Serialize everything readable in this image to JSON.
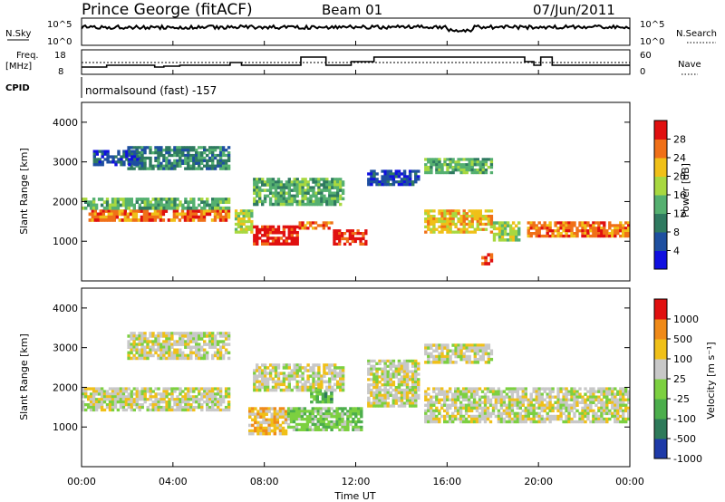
{
  "header": {
    "station": "Prince George (fitACF)",
    "beam": "Beam 01",
    "date": "07/Jun/2011"
  },
  "aux": {
    "nsky_label": "N.Sky",
    "nsky_ticks": [
      "10^5",
      "10^0"
    ],
    "nsearch_label": "N.Search",
    "nsearch_ticks": [
      "10^5",
      "10^0"
    ],
    "freq_label": "Freq.",
    "freq_unit": "[MHz]",
    "freq_ticks": [
      "18",
      "8"
    ],
    "nave_label": "Nave",
    "nave_ticks": [
      "60",
      "0"
    ],
    "cpid_label": "CPID",
    "cpid_value": "normalsound (fast) -157"
  },
  "axes": {
    "ylabel": "Slant Range [km]",
    "xlabel": "Time UT",
    "y_ticks": [
      "1000",
      "2000",
      "3000",
      "4000"
    ],
    "x_ticks": [
      "00:00",
      "04:00",
      "08:00",
      "12:00",
      "16:00",
      "20:00",
      "00:00"
    ]
  },
  "power_scale": {
    "label": "Power [dB]",
    "ticks": [
      "4",
      "8",
      "12",
      "16",
      "20",
      "24",
      "28"
    ],
    "colors": [
      "#1010e0",
      "#1e4fa0",
      "#2f7a60",
      "#55b070",
      "#a8d840",
      "#f0c018",
      "#f07018",
      "#e01010"
    ]
  },
  "velocity_scale": {
    "label": "Velocity [m s⁻¹]",
    "ticks": [
      "1000",
      "500",
      "100",
      "25",
      "-25",
      "-100",
      "-500",
      "-1000"
    ],
    "colors": [
      "#1e3aa8",
      "#2e7a5a",
      "#4cae4c",
      "#7cd040",
      "#c8c8c8",
      "#f0c018",
      "#f08a18",
      "#e01010"
    ]
  },
  "chart_data": {
    "type": "heatmap",
    "x_range_hours": [
      0,
      24
    ],
    "y_range_km": [
      0,
      4500
    ],
    "panels": [
      {
        "name": "power",
        "bands": [
          {
            "t0": 0.3,
            "t1": 6.5,
            "r0": 1500,
            "r1": 1800,
            "level": 6
          },
          {
            "t0": 0.0,
            "t1": 6.5,
            "r0": 1800,
            "r1": 2100,
            "level": 3
          },
          {
            "t0": 2.0,
            "t1": 6.5,
            "r0": 2800,
            "r1": 3400,
            "level": 2
          },
          {
            "t0": 0.5,
            "t1": 2.5,
            "r0": 2900,
            "r1": 3300,
            "level": 1
          },
          {
            "t0": 6.7,
            "t1": 7.5,
            "r0": 1200,
            "r1": 1800,
            "level": 4
          },
          {
            "t0": 7.5,
            "t1": 9.5,
            "r0": 900,
            "r1": 1400,
            "level": 7
          },
          {
            "t0": 9.5,
            "t1": 11.0,
            "r0": 1300,
            "r1": 1500,
            "level": 6
          },
          {
            "t0": 11.0,
            "t1": 12.5,
            "r0": 900,
            "r1": 1300,
            "level": 7
          },
          {
            "t0": 7.5,
            "t1": 11.5,
            "r0": 1900,
            "r1": 2600,
            "level": 3
          },
          {
            "t0": 12.5,
            "t1": 14.8,
            "r0": 2400,
            "r1": 2800,
            "level": 1
          },
          {
            "t0": 15.0,
            "t1": 18.0,
            "r0": 1200,
            "r1": 1800,
            "level": 5
          },
          {
            "t0": 15.0,
            "t1": 18.0,
            "r0": 2700,
            "r1": 3100,
            "level": 3
          },
          {
            "t0": 18.0,
            "t1": 19.2,
            "r0": 1000,
            "r1": 1500,
            "level": 4
          },
          {
            "t0": 19.5,
            "t1": 24.0,
            "r0": 1100,
            "r1": 1500,
            "level": 6
          },
          {
            "t0": 17.5,
            "t1": 18.0,
            "r0": 400,
            "r1": 700,
            "level": 7
          }
        ]
      },
      {
        "name": "velocity",
        "bands": [
          {
            "t0": 0.0,
            "t1": 6.5,
            "r0": 1400,
            "r1": 2000,
            "level": 4
          },
          {
            "t0": 2.0,
            "t1": 6.5,
            "r0": 2700,
            "r1": 3400,
            "level": 4
          },
          {
            "t0": 7.3,
            "t1": 9.0,
            "r0": 800,
            "r1": 1500,
            "level": 5
          },
          {
            "t0": 9.0,
            "t1": 12.3,
            "r0": 900,
            "r1": 1500,
            "level": 3
          },
          {
            "t0": 10.0,
            "t1": 11.0,
            "r0": 1600,
            "r1": 2000,
            "level": 2
          },
          {
            "t0": 7.5,
            "t1": 11.5,
            "r0": 1900,
            "r1": 2600,
            "level": 4
          },
          {
            "t0": 12.5,
            "t1": 14.8,
            "r0": 1500,
            "r1": 2700,
            "level": 4
          },
          {
            "t0": 15.0,
            "t1": 24.0,
            "r0": 1100,
            "r1": 2000,
            "level": 4
          },
          {
            "t0": 15.0,
            "t1": 18.0,
            "r0": 2600,
            "r1": 3100,
            "level": 4
          }
        ]
      }
    ]
  }
}
